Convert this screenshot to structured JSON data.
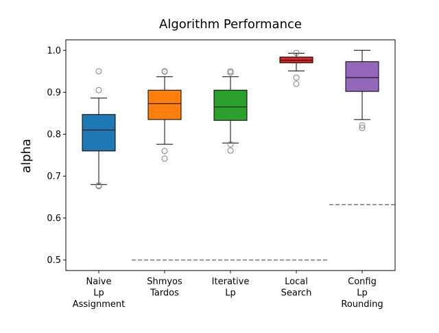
{
  "chart_data": {
    "type": "box",
    "title": "Algorithm Performance",
    "xlabel": "",
    "ylabel": "alpha",
    "ylim": [
      0.475,
      1.025
    ],
    "yticks": [
      0.5,
      0.6,
      0.7,
      0.8,
      0.9,
      1.0
    ],
    "ytick_labels": [
      "0.5",
      "0.6",
      "0.7",
      "0.8",
      "0.9",
      "1.0"
    ],
    "grid": false,
    "categories": [
      [
        "Naive",
        "Lp",
        "Assignment"
      ],
      [
        "Shmyos",
        "Tardos"
      ],
      [
        "Iterative",
        "Lp"
      ],
      [
        "Local",
        "Search"
      ],
      [
        "Config",
        "Lp",
        "Rounding"
      ]
    ],
    "boxes": [
      {
        "color": "#1f77b4",
        "whisker_low": 0.68,
        "q1": 0.76,
        "median": 0.81,
        "q3": 0.847,
        "whisker_high": 0.886,
        "outliers": [
          0.95,
          0.905,
          0.678,
          0.676
        ]
      },
      {
        "color": "#ff7f0e",
        "whisker_low": 0.776,
        "q1": 0.835,
        "median": 0.873,
        "q3": 0.905,
        "whisker_high": 0.937,
        "outliers": [
          0.95,
          0.949,
          0.76,
          0.742
        ]
      },
      {
        "color": "#2ca02c",
        "whisker_low": 0.779,
        "q1": 0.833,
        "median": 0.865,
        "q3": 0.905,
        "whisker_high": 0.937,
        "outliers": [
          0.95,
          0.947,
          0.776,
          0.761
        ]
      },
      {
        "color": "#d62728",
        "whisker_low": 0.951,
        "q1": 0.97,
        "median": 0.976,
        "q3": 0.984,
        "whisker_high": 0.993,
        "outliers": [
          0.994,
          0.935,
          0.92
        ]
      },
      {
        "color": "#9467bd",
        "whisker_low": 0.835,
        "q1": 0.902,
        "median": 0.935,
        "q3": 0.973,
        "whisker_high": 1.0,
        "outliers": [
          0.821,
          0.815
        ]
      }
    ],
    "reference_lines": [
      {
        "y": 0.5,
        "x_from": 1.5,
        "x_to": 4.5,
        "style": "dashed",
        "color": "#808080"
      },
      {
        "y": 0.632,
        "x_from": 4.5,
        "x_to": 5.5,
        "style": "dashed",
        "color": "#808080"
      }
    ]
  }
}
